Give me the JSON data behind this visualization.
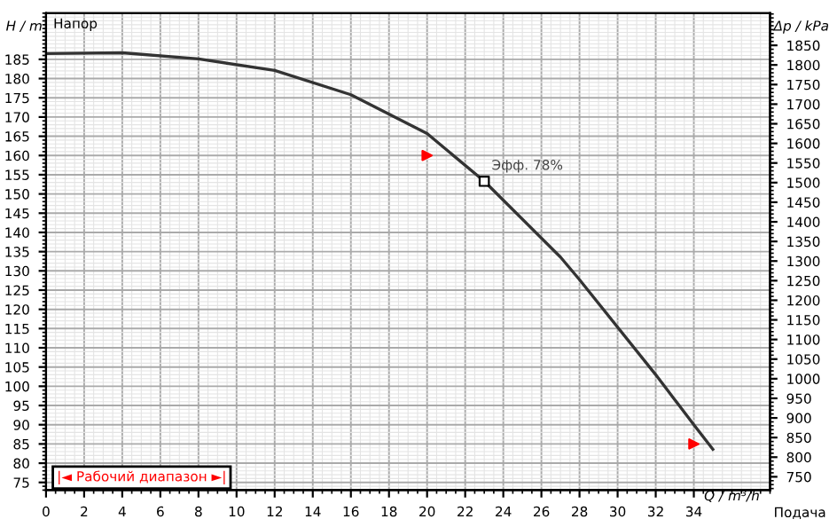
{
  "chart_data": {
    "type": "line",
    "ylabel": "H / m",
    "y2label": "Δp / kPa",
    "xlabel": "Q / m³/h",
    "annotations": [
      "Напор",
      "Подача",
      {
        "text": "Эфф. 78%",
        "x": 23,
        "y": 153
      },
      "|◄ Рабочий диапазон ►|"
    ],
    "series": [
      {
        "color": "#333333",
        "x": [
          0,
          4,
          8,
          12,
          16,
          20,
          23,
          27,
          28,
          32,
          34,
          35
        ],
        "values": [
          186.5,
          186.7,
          185.1,
          182.1,
          175.8,
          165.7,
          153.3,
          133.6,
          127.7,
          103,
          90,
          83.6
        ]
      },
      {
        "type": "scatter",
        "color": "#ff0000",
        "marker": "triangle",
        "x": [
          20,
          34
        ],
        "values": [
          160,
          85
        ]
      },
      {
        "type": "scatter",
        "color": "#000000",
        "marker": "square",
        "x": [
          23
        ],
        "values": [
          153.3
        ]
      }
    ],
    "xlim": [
      0,
      38
    ],
    "xticks": [
      0,
      2,
      4,
      6,
      8,
      10,
      12,
      14,
      16,
      18,
      20,
      22,
      24,
      26,
      28,
      30,
      32,
      34
    ],
    "ylim": [
      73,
      197
    ],
    "yticks": [
      75,
      80,
      85,
      90,
      95,
      100,
      105,
      110,
      115,
      120,
      125,
      130,
      135,
      140,
      145,
      150,
      155,
      160,
      165,
      170,
      175,
      180,
      185
    ],
    "y2lim": [
      716,
      1932
    ],
    "y2ticks": [
      750,
      800,
      850,
      900,
      950,
      1000,
      1050,
      1100,
      1150,
      1200,
      1250,
      1300,
      1350,
      1400,
      1450,
      1500,
      1550,
      1600,
      1650,
      1700,
      1750,
      1800,
      1850
    ],
    "grid": true,
    "legend": false
  }
}
